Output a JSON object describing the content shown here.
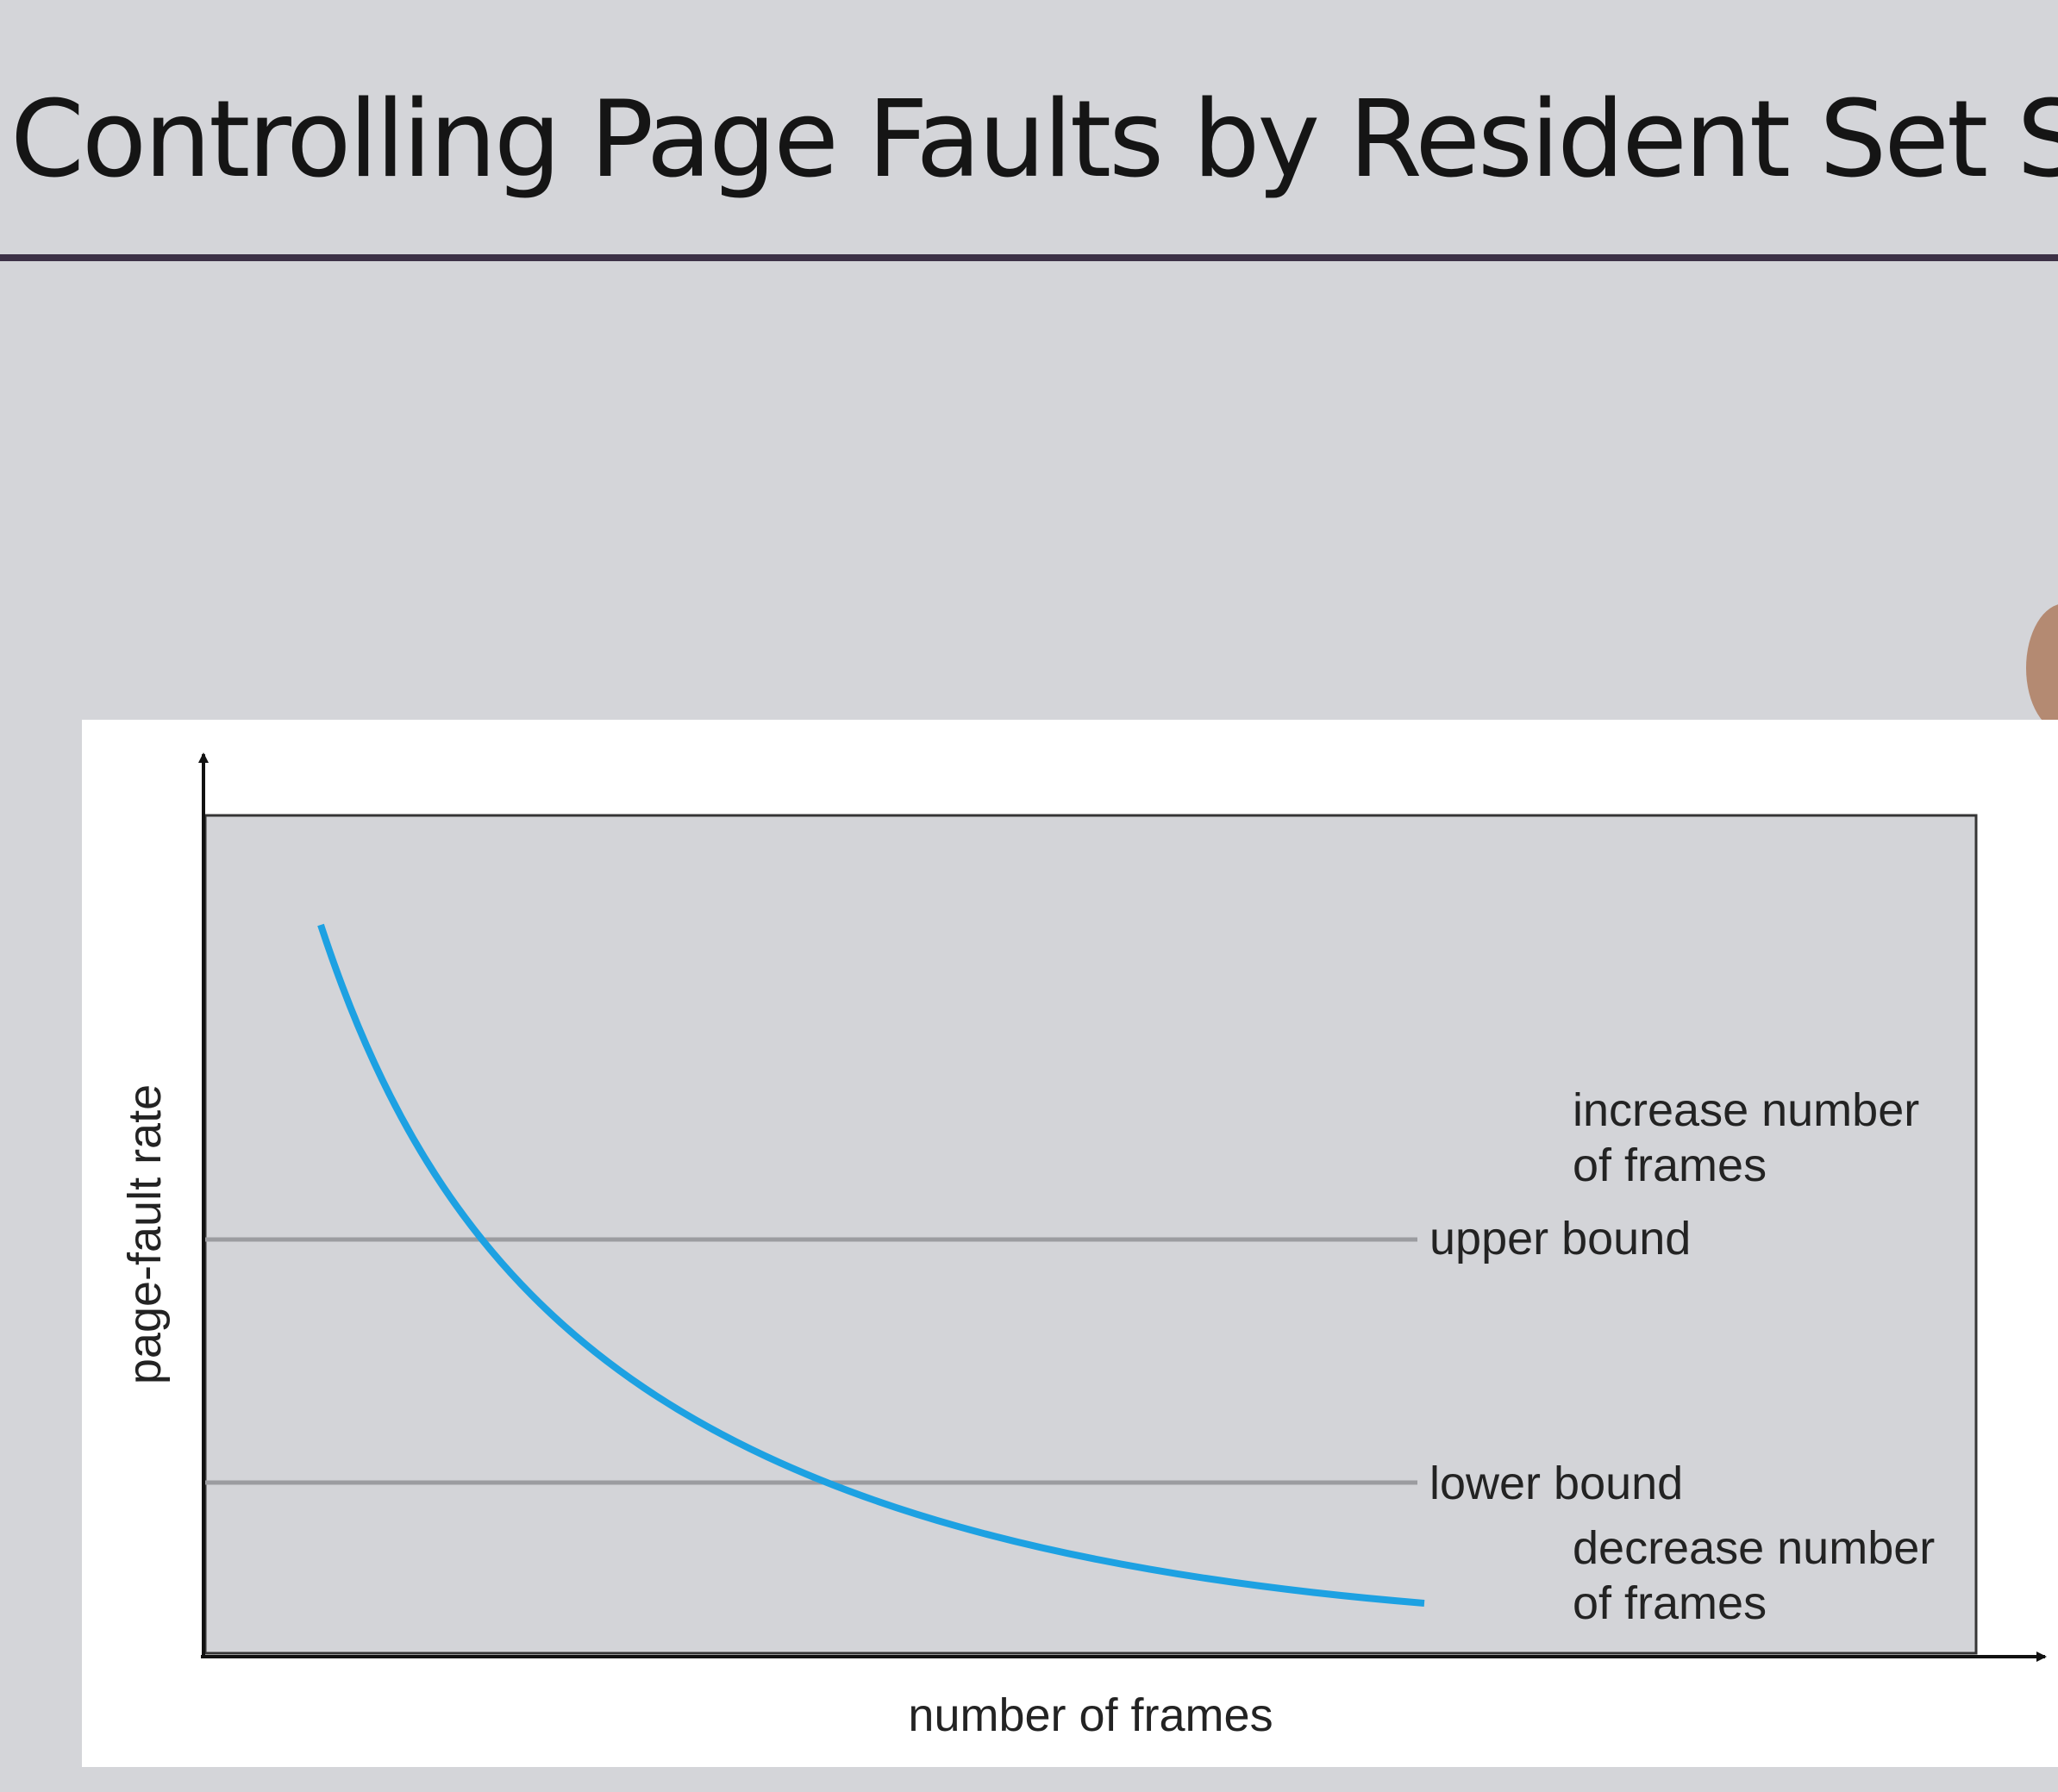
{
  "slide": {
    "title": "Controlling Page Faults by Resident Set Size"
  },
  "diagram": {
    "y_axis_label": "page-fault rate",
    "x_axis_label": "number of frames",
    "upper_bound_label": "upper bound",
    "lower_bound_label": "lower bound",
    "increase_note": [
      "increase number",
      "of frames"
    ],
    "decrease_note": [
      "decrease number",
      "of frames"
    ],
    "curve_color": "#1da1e2",
    "plot_background_color": "#d3d4d8",
    "bound_line_color": "#9b9ca0"
  }
}
